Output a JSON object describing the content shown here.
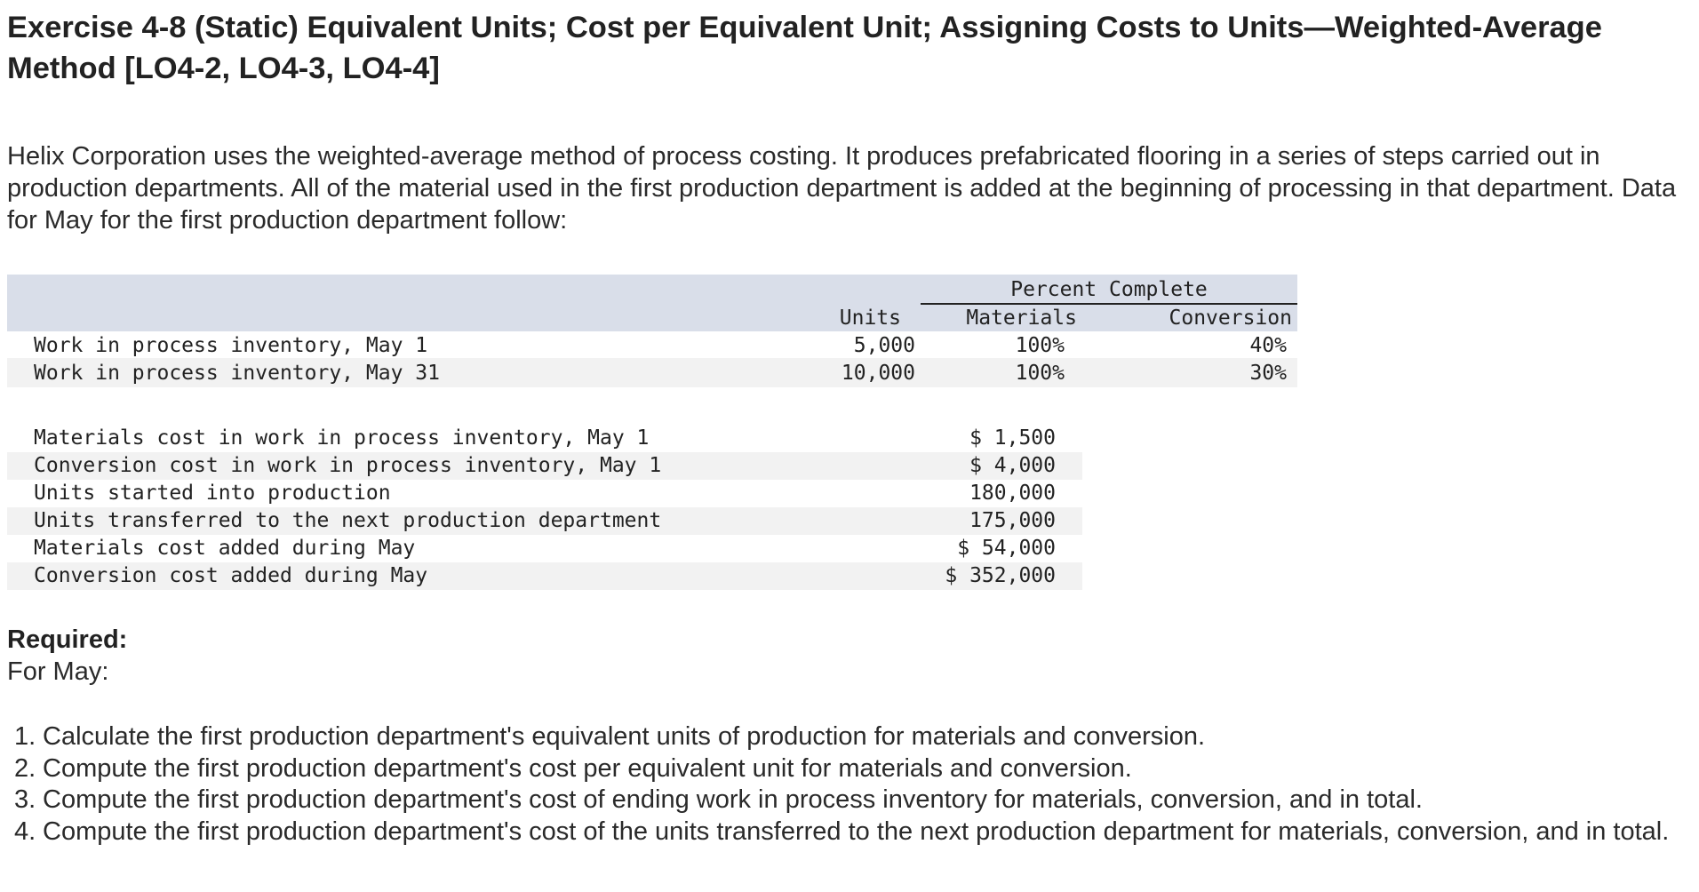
{
  "title": "Exercise 4-8 (Static) Equivalent Units; Cost per Equivalent Unit; Assigning Costs to Units—Weighted-Average Method [LO4-2, LO4-3, LO4-4]",
  "intro": "Helix Corporation uses the weighted-average method of process costing. It produces prefabricated flooring in a series of steps carried out in production departments. All of the material used in the first production department is added at the beginning of processing in that department. Data for May for the first production department follow:",
  "inventory_table": {
    "header": {
      "percent_complete": "Percent Complete",
      "units": "Units",
      "materials": "Materials",
      "conversion": "Conversion"
    },
    "rows": [
      {
        "label": "Work in process inventory, May 1",
        "units": "5,000",
        "materials": "100%",
        "conversion": "40%"
      },
      {
        "label": "Work in process inventory, May 31",
        "units": "10,000",
        "materials": "100%",
        "conversion": "30%"
      }
    ]
  },
  "cost_table": {
    "rows": [
      {
        "label": "Materials cost in work in process inventory, May 1",
        "value": "$ 1,500"
      },
      {
        "label": "Conversion cost in work in process inventory, May 1",
        "value": "$ 4,000"
      },
      {
        "label": "Units started into production",
        "value": "180,000"
      },
      {
        "label": "Units transferred to the next production department",
        "value": "175,000"
      },
      {
        "label": "Materials cost added during May",
        "value": "$ 54,000"
      },
      {
        "label": "Conversion cost added during May",
        "value": "$ 352,000"
      }
    ]
  },
  "required": {
    "heading": "Required:",
    "subheading": "For May:",
    "items": [
      {
        "num": "1.",
        "text": "Calculate the first production department's equivalent units of production for materials and conversion."
      },
      {
        "num": "2.",
        "text": "Compute the first production department's cost per equivalent unit for materials and conversion."
      },
      {
        "num": "3.",
        "text": "Compute the first production department's cost of ending work in process inventory for materials, conversion, and in total."
      },
      {
        "num": "4.",
        "text": "Compute the first production department's cost of the units transferred to the next production department for materials, conversion, and in total."
      }
    ]
  }
}
